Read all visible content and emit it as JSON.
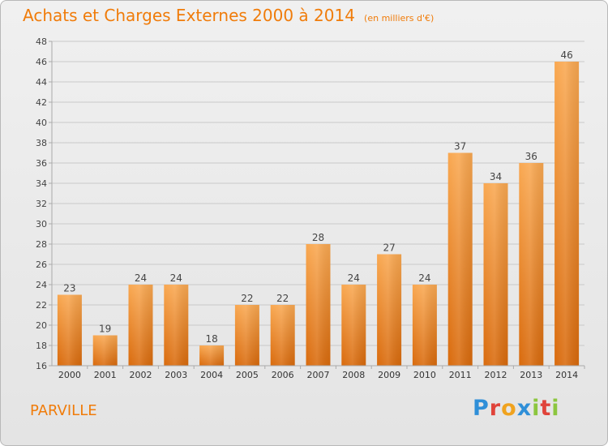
{
  "chart_data": {
    "type": "bar",
    "title": "Achats et Charges Externes 2000 à 2014",
    "subtitle": "(en milliers d'€)",
    "categories": [
      "2000",
      "2001",
      "2002",
      "2003",
      "2004",
      "2005",
      "2006",
      "2007",
      "2008",
      "2009",
      "2010",
      "2011",
      "2012",
      "2013",
      "2014"
    ],
    "values": [
      23,
      19,
      24,
      24,
      18,
      22,
      22,
      28,
      24,
      27,
      24,
      37,
      34,
      36,
      46
    ],
    "ylim": [
      16,
      48
    ],
    "yticks": [
      16,
      18,
      20,
      22,
      24,
      26,
      28,
      30,
      32,
      34,
      36,
      38,
      40,
      42,
      44,
      46,
      48
    ],
    "grid": true,
    "bar_color": "#f07f1a"
  },
  "footer": {
    "town": "PARVILLE",
    "logo": {
      "letters": [
        "P",
        "r",
        "o",
        "x",
        "i",
        "t",
        "i"
      ]
    }
  }
}
